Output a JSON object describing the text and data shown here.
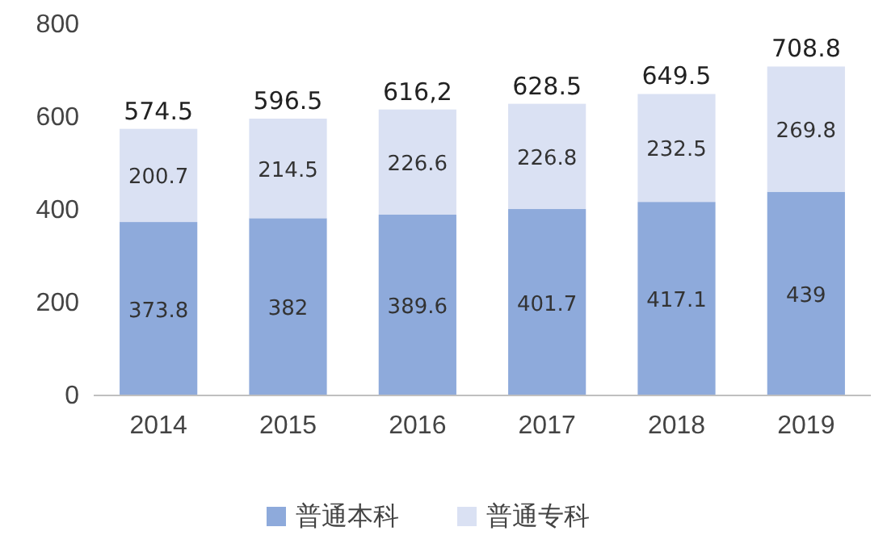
{
  "chart_data": {
    "type": "bar",
    "stacked": true,
    "categories": [
      "2014",
      "2015",
      "2016",
      "2017",
      "2018",
      "2019"
    ],
    "series": [
      {
        "name": "普通本科",
        "color": "#8eaadb",
        "values": [
          373.8,
          382,
          389.6,
          401.7,
          417.1,
          439
        ]
      },
      {
        "name": "普通专科",
        "color": "#dae1f3",
        "values": [
          200.7,
          214.5,
          226.6,
          226.8,
          232.5,
          269.8
        ]
      }
    ],
    "ylim": [
      0,
      800
    ],
    "yticks": [
      0,
      200,
      400,
      600,
      800
    ],
    "data_labels": true,
    "totals": [
      "574.5",
      "596.5",
      "616,2",
      "628.5",
      "649.5",
      "708.8"
    ],
    "legend": "bottom",
    "grid": false
  }
}
